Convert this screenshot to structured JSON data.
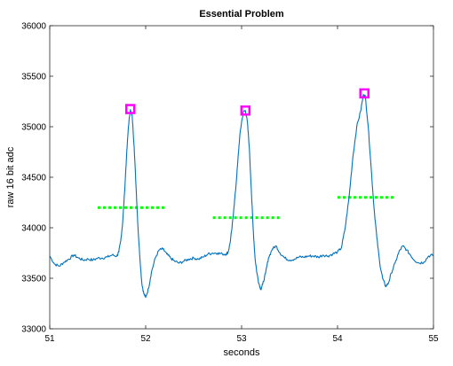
{
  "chart_data": {
    "type": "line",
    "title": "Essential Problem",
    "xlabel": "seconds",
    "ylabel": "raw 16 bit adc",
    "xlim": [
      51,
      55
    ],
    "ylim": [
      33000,
      36000
    ],
    "xticks": [
      51,
      52,
      53,
      54,
      55
    ],
    "yticks": [
      33000,
      33500,
      34000,
      34500,
      35000,
      35500,
      36000
    ],
    "grid": false,
    "colors": {
      "signal": "#0072bd",
      "peak_marker": "#ff00ff",
      "threshold": "#00ff00"
    },
    "series": [
      {
        "kind": "line",
        "points": [
          [
            51.0,
            33720
          ],
          [
            51.05,
            33640
          ],
          [
            51.1,
            33620
          ],
          [
            51.15,
            33660
          ],
          [
            51.2,
            33690
          ],
          [
            51.25,
            33730
          ],
          [
            51.3,
            33700
          ],
          [
            51.35,
            33680
          ],
          [
            51.4,
            33690
          ],
          [
            51.45,
            33680
          ],
          [
            51.5,
            33700
          ],
          [
            51.55,
            33700
          ],
          [
            51.6,
            33710
          ],
          [
            51.65,
            33730
          ],
          [
            51.7,
            33720
          ],
          [
            51.72,
            33760
          ],
          [
            51.74,
            33870
          ],
          [
            51.76,
            34050
          ],
          [
            51.78,
            34350
          ],
          [
            51.8,
            34700
          ],
          [
            51.82,
            35000
          ],
          [
            51.84,
            35170
          ],
          [
            51.86,
            35100
          ],
          [
            51.88,
            34800
          ],
          [
            51.9,
            34400
          ],
          [
            51.92,
            34000
          ],
          [
            51.94,
            33700
          ],
          [
            51.96,
            33450
          ],
          [
            51.98,
            33350
          ],
          [
            52.0,
            33310
          ],
          [
            52.03,
            33400
          ],
          [
            52.06,
            33560
          ],
          [
            52.1,
            33700
          ],
          [
            52.14,
            33780
          ],
          [
            52.18,
            33790
          ],
          [
            52.22,
            33740
          ],
          [
            52.26,
            33700
          ],
          [
            52.3,
            33670
          ],
          [
            52.35,
            33650
          ],
          [
            52.4,
            33670
          ],
          [
            52.45,
            33690
          ],
          [
            52.5,
            33700
          ],
          [
            52.55,
            33690
          ],
          [
            52.6,
            33710
          ],
          [
            52.65,
            33740
          ],
          [
            52.7,
            33750
          ],
          [
            52.75,
            33750
          ],
          [
            52.8,
            33740
          ],
          [
            52.84,
            33740
          ],
          [
            52.86,
            33760
          ],
          [
            52.88,
            33850
          ],
          [
            52.9,
            34000
          ],
          [
            52.92,
            34200
          ],
          [
            52.94,
            34400
          ],
          [
            52.96,
            34650
          ],
          [
            52.98,
            34900
          ],
          [
            53.0,
            35050
          ],
          [
            53.02,
            35150
          ],
          [
            53.04,
            35160
          ],
          [
            53.06,
            35050
          ],
          [
            53.08,
            34800
          ],
          [
            53.1,
            34400
          ],
          [
            53.12,
            34000
          ],
          [
            53.14,
            33700
          ],
          [
            53.16,
            33550
          ],
          [
            53.18,
            33450
          ],
          [
            53.2,
            33390
          ],
          [
            53.22,
            33440
          ],
          [
            53.25,
            33550
          ],
          [
            53.28,
            33700
          ],
          [
            53.32,
            33790
          ],
          [
            53.36,
            33820
          ],
          [
            53.4,
            33750
          ],
          [
            53.45,
            33700
          ],
          [
            53.5,
            33680
          ],
          [
            53.55,
            33690
          ],
          [
            53.6,
            33710
          ],
          [
            53.65,
            33710
          ],
          [
            53.7,
            33720
          ],
          [
            53.75,
            33720
          ],
          [
            53.8,
            33710
          ],
          [
            53.85,
            33730
          ],
          [
            53.9,
            33720
          ],
          [
            53.95,
            33740
          ],
          [
            54.0,
            33760
          ],
          [
            54.04,
            33800
          ],
          [
            54.08,
            34000
          ],
          [
            54.12,
            34300
          ],
          [
            54.16,
            34700
          ],
          [
            54.2,
            35000
          ],
          [
            54.24,
            35150
          ],
          [
            54.27,
            35320
          ],
          [
            54.29,
            35300
          ],
          [
            54.32,
            35000
          ],
          [
            54.35,
            34600
          ],
          [
            54.38,
            34200
          ],
          [
            54.41,
            33900
          ],
          [
            54.44,
            33650
          ],
          [
            54.47,
            33500
          ],
          [
            54.5,
            33420
          ],
          [
            54.53,
            33450
          ],
          [
            54.56,
            33550
          ],
          [
            54.6,
            33650
          ],
          [
            54.64,
            33760
          ],
          [
            54.68,
            33820
          ],
          [
            54.72,
            33780
          ],
          [
            54.76,
            33730
          ],
          [
            54.8,
            33680
          ],
          [
            54.85,
            33650
          ],
          [
            54.9,
            33660
          ],
          [
            54.95,
            33720
          ],
          [
            55.0,
            33730
          ]
        ]
      },
      {
        "kind": "peaks",
        "points": [
          [
            51.84,
            35175
          ],
          [
            53.04,
            35160
          ],
          [
            54.28,
            35330
          ]
        ]
      },
      {
        "kind": "thresholds",
        "segments": [
          {
            "x": [
              51.5,
              52.2
            ],
            "y": 34200
          },
          {
            "x": [
              52.7,
              53.4
            ],
            "y": 34100
          },
          {
            "x": [
              54.0,
              54.6
            ],
            "y": 34300
          }
        ]
      }
    ]
  }
}
